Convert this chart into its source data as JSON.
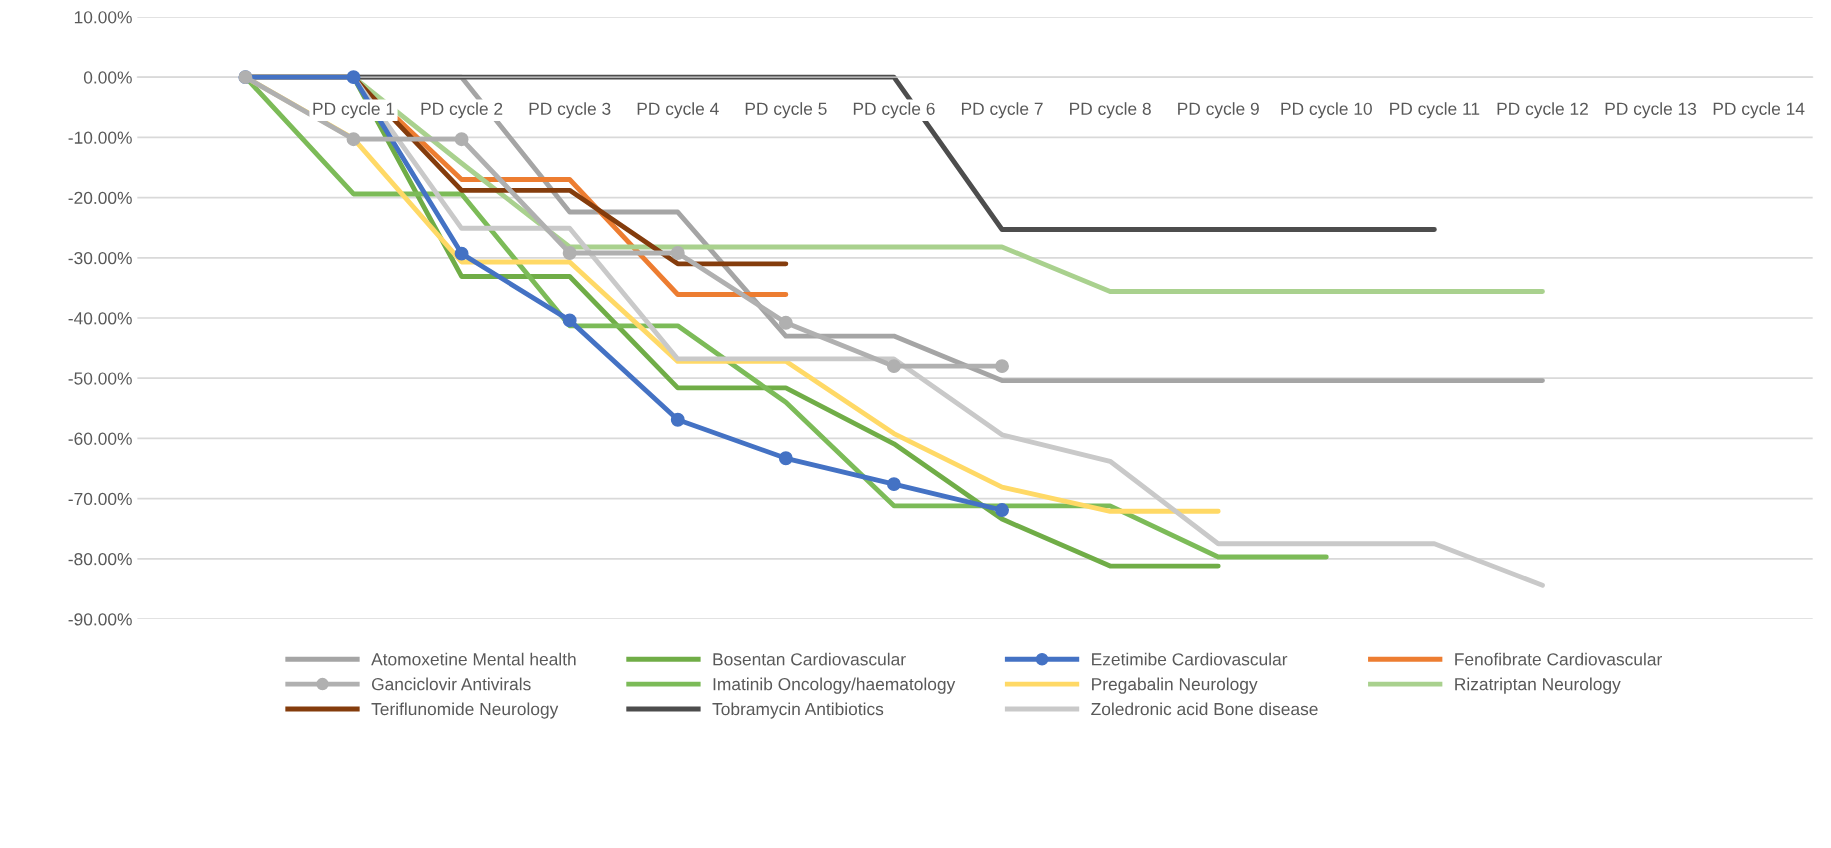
{
  "chart_data": {
    "type": "line",
    "categories": [
      null,
      "PD cycle 1",
      "PD cycle 2",
      "PD cycle 3",
      "PD cycle 4",
      "PD cycle 5",
      "PD cycle 6",
      "PD cycle 7",
      "PD cycle 8",
      "PD cycle 9",
      "PD cycle 10",
      "PD cycle 11",
      "PD cycle 12",
      "PD cycle 13",
      "PD cycle 14"
    ],
    "ylim": [
      -90,
      10
    ],
    "yticks": [
      {
        "value": 10,
        "label": "10.00%"
      },
      {
        "value": 0,
        "label": "0.00%"
      },
      {
        "value": -10,
        "label": "-10.00%"
      },
      {
        "value": -20,
        "label": "-20.00%"
      },
      {
        "value": -30,
        "label": "-30.00%"
      },
      {
        "value": -40,
        "label": "-40.00%"
      },
      {
        "value": -50,
        "label": "-50.00%"
      },
      {
        "value": -60,
        "label": "-60.00%"
      },
      {
        "value": -70,
        "label": "-70.00%"
      },
      {
        "value": -80,
        "label": "-80.00%"
      },
      {
        "value": -90,
        "label": "-90.00%"
      }
    ],
    "grid": "y",
    "legend": "bottom",
    "marker": "none",
    "line_style": "solid",
    "series": [
      {
        "name": "Atomoxetine Mental health",
        "color": "#a5a5a5",
        "values": [
          0,
          0,
          0,
          -22.4,
          -22.4,
          -43.0,
          -43.0,
          -50.4,
          -50.4,
          -50.4,
          -50.4,
          -50.4,
          -50.4,
          null,
          null
        ]
      },
      {
        "name": "Bosentan Cardiovascular",
        "color": "#70ad47",
        "values": [
          0,
          0,
          -33.1,
          -33.1,
          -51.6,
          -51.6,
          -60.9,
          -73.4,
          -81.2,
          -81.2,
          null,
          null,
          null,
          null,
          null
        ]
      },
      {
        "name": "Ezetimibe Cardiovascular",
        "color": "#4472c4",
        "marker": "circle",
        "values": [
          0,
          0,
          -29.3,
          -40.4,
          -56.9,
          -63.3,
          -67.6,
          -71.9,
          null,
          null,
          null,
          null,
          null,
          null,
          null
        ]
      },
      {
        "name": "Fenofibrate Cardiovascular",
        "color": "#ed7d31",
        "values": [
          0,
          0,
          -17.0,
          -17.0,
          -36.1,
          -36.1,
          null,
          null,
          null,
          null,
          null,
          null,
          null,
          null,
          null
        ]
      },
      {
        "name": "Ganciclovir Antivirals",
        "color": "#b0b0b0",
        "marker": "circle",
        "values": [
          0,
          -10.3,
          -10.3,
          -29.2,
          -29.2,
          -40.8,
          -48.0,
          -48.0,
          null,
          null,
          null,
          null,
          null,
          null,
          null
        ]
      },
      {
        "name": "Imatinib Oncology/haematology",
        "color": "#7cbb58",
        "values": [
          0,
          -19.4,
          -19.4,
          -41.3,
          -41.3,
          -54.0,
          -71.2,
          -71.2,
          -71.2,
          -79.7,
          -79.7,
          null,
          null,
          null,
          null
        ]
      },
      {
        "name": "Pregabalin Neurology",
        "color": "#ffd966",
        "values": [
          0,
          -10.2,
          -30.7,
          -30.7,
          -47.2,
          -47.2,
          -59.2,
          -68.1,
          -72.1,
          -72.1,
          null,
          null,
          null,
          null,
          null
        ]
      },
      {
        "name": "Rizatriptan Neurology",
        "color": "#a9d18e",
        "values": [
          0,
          0,
          -14.3,
          -28.2,
          -28.2,
          -28.2,
          -28.2,
          -28.2,
          -35.6,
          -35.6,
          -35.6,
          -35.6,
          -35.6,
          null,
          null
        ]
      },
      {
        "name": "Teriflunomide Neurology",
        "color": "#843c0c",
        "values": [
          0,
          0,
          -18.8,
          -18.8,
          -31.0,
          -31.0,
          null,
          null,
          null,
          null,
          null,
          null,
          null,
          null,
          null
        ]
      },
      {
        "name": "Tobramycin Antibiotics",
        "color": "#4d4d4d",
        "values": [
          null,
          0,
          0,
          0,
          0,
          0,
          0,
          -25.3,
          -25.3,
          -25.3,
          -25.3,
          -25.3,
          null,
          null,
          null
        ]
      },
      {
        "name": "Zoledronic acid Bone disease",
        "color": "#c9c9c9",
        "values": [
          0,
          0,
          -25.1,
          -25.1,
          -46.8,
          -46.8,
          -46.8,
          -59.4,
          -63.8,
          -77.5,
          -77.5,
          -77.5,
          -84.4,
          null,
          null
        ]
      }
    ]
  }
}
